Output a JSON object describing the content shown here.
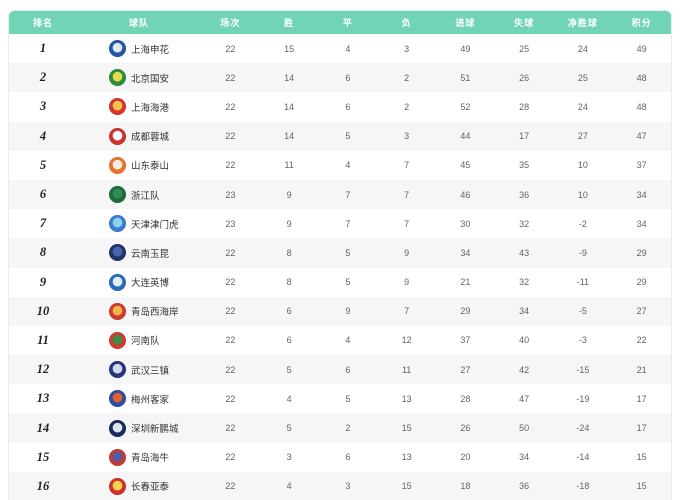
{
  "theme": {
    "header_bg": "#72d4b6",
    "header_text": "#ffffff",
    "row_alt_bg": "#f6f6f6",
    "row_bg": "#ffffff",
    "card_border": "#ebebeb"
  },
  "table": {
    "columns": [
      "排名",
      "球队",
      "场次",
      "胜",
      "平",
      "负",
      "进球",
      "失球",
      "净胜球",
      "积分"
    ],
    "rows": [
      {
        "rank": "1",
        "team": "上海申花",
        "played": "22",
        "win": "15",
        "draw": "4",
        "loss": "3",
        "goals_for": "49",
        "goals_against": "25",
        "goal_diff": "24",
        "points": "49",
        "logo": {
          "outer": "#2456a5",
          "inner": "#dce9f9"
        }
      },
      {
        "rank": "2",
        "team": "北京国安",
        "played": "22",
        "win": "14",
        "draw": "6",
        "loss": "2",
        "goals_for": "51",
        "goals_against": "26",
        "goal_diff": "25",
        "points": "48",
        "logo": {
          "outer": "#2f8a3a",
          "inner": "#e4de4e"
        }
      },
      {
        "rank": "3",
        "team": "上海海港",
        "played": "22",
        "win": "14",
        "draw": "6",
        "loss": "2",
        "goals_for": "52",
        "goals_against": "28",
        "goal_diff": "24",
        "points": "48",
        "logo": {
          "outer": "#d6342c",
          "inner": "#f3c24a"
        }
      },
      {
        "rank": "4",
        "team": "成都蓉城",
        "played": "22",
        "win": "14",
        "draw": "5",
        "loss": "3",
        "goals_for": "44",
        "goals_against": "17",
        "goal_diff": "27",
        "points": "47",
        "logo": {
          "outer": "#d0312d",
          "inner": "#ffffff"
        }
      },
      {
        "rank": "5",
        "team": "山东泰山",
        "played": "22",
        "win": "11",
        "draw": "4",
        "loss": "7",
        "goals_for": "45",
        "goals_against": "35",
        "goal_diff": "10",
        "points": "37",
        "logo": {
          "outer": "#e8742c",
          "inner": "#f7ede0"
        }
      },
      {
        "rank": "6",
        "team": "浙江队",
        "played": "23",
        "win": "9",
        "draw": "7",
        "loss": "7",
        "goals_for": "46",
        "goals_against": "36",
        "goal_diff": "10",
        "points": "34",
        "logo": {
          "outer": "#1f6b3c",
          "inner": "#2f8f55"
        }
      },
      {
        "rank": "7",
        "team": "天津津门虎",
        "played": "23",
        "win": "9",
        "draw": "7",
        "loss": "7",
        "goals_for": "30",
        "goals_against": "32",
        "goal_diff": "-2",
        "points": "34",
        "logo": {
          "outer": "#3a7bd5",
          "inner": "#8cd2e8"
        }
      },
      {
        "rank": "8",
        "team": "云南玉昆",
        "played": "22",
        "win": "8",
        "draw": "5",
        "loss": "9",
        "goals_for": "34",
        "goals_against": "43",
        "goal_diff": "-9",
        "points": "29",
        "logo": {
          "outer": "#20336b",
          "inner": "#4a66a8"
        }
      },
      {
        "rank": "9",
        "team": "大连英博",
        "played": "22",
        "win": "8",
        "draw": "5",
        "loss": "9",
        "goals_for": "21",
        "goals_against": "32",
        "goal_diff": "-11",
        "points": "29",
        "logo": {
          "outer": "#2b6cb8",
          "inner": "#e3edf9"
        }
      },
      {
        "rank": "10",
        "team": "青岛西海岸",
        "played": "22",
        "win": "6",
        "draw": "9",
        "loss": "7",
        "goals_for": "29",
        "goals_against": "34",
        "goal_diff": "-5",
        "points": "27",
        "logo": {
          "outer": "#d03a30",
          "inner": "#f0b64a"
        }
      },
      {
        "rank": "11",
        "team": "河南队",
        "played": "22",
        "win": "6",
        "draw": "4",
        "loss": "12",
        "goals_for": "37",
        "goals_against": "40",
        "goal_diff": "-3",
        "points": "22",
        "logo": {
          "outer": "#d23b33",
          "inner": "#3e8f46"
        }
      },
      {
        "rank": "12",
        "team": "武汉三镇",
        "played": "22",
        "win": "5",
        "draw": "6",
        "loss": "11",
        "goals_for": "27",
        "goals_against": "42",
        "goal_diff": "-15",
        "points": "21",
        "logo": {
          "outer": "#27357e",
          "inner": "#cfd9f2"
        }
      },
      {
        "rank": "13",
        "team": "梅州客家",
        "played": "22",
        "win": "4",
        "draw": "5",
        "loss": "13",
        "goals_for": "28",
        "goals_against": "47",
        "goal_diff": "-19",
        "points": "17",
        "logo": {
          "outer": "#2b4fa0",
          "inner": "#e0622f"
        }
      },
      {
        "rank": "14",
        "team": "深圳新鹏城",
        "played": "22",
        "win": "5",
        "draw": "2",
        "loss": "15",
        "goals_for": "26",
        "goals_against": "50",
        "goal_diff": "-24",
        "points": "17",
        "logo": {
          "outer": "#1b2a5e",
          "inner": "#dfe5f0"
        }
      },
      {
        "rank": "15",
        "team": "青岛海牛",
        "played": "22",
        "win": "3",
        "draw": "6",
        "loss": "13",
        "goals_for": "20",
        "goals_against": "34",
        "goal_diff": "-14",
        "points": "15",
        "logo": {
          "outer": "#c43a36",
          "inner": "#4a5fa5"
        }
      },
      {
        "rank": "16",
        "team": "长春亚泰",
        "played": "22",
        "win": "4",
        "draw": "3",
        "loss": "15",
        "goals_for": "18",
        "goals_against": "36",
        "goal_diff": "-18",
        "points": "15",
        "logo": {
          "outer": "#d0312d",
          "inner": "#f3d44a"
        }
      }
    ]
  }
}
